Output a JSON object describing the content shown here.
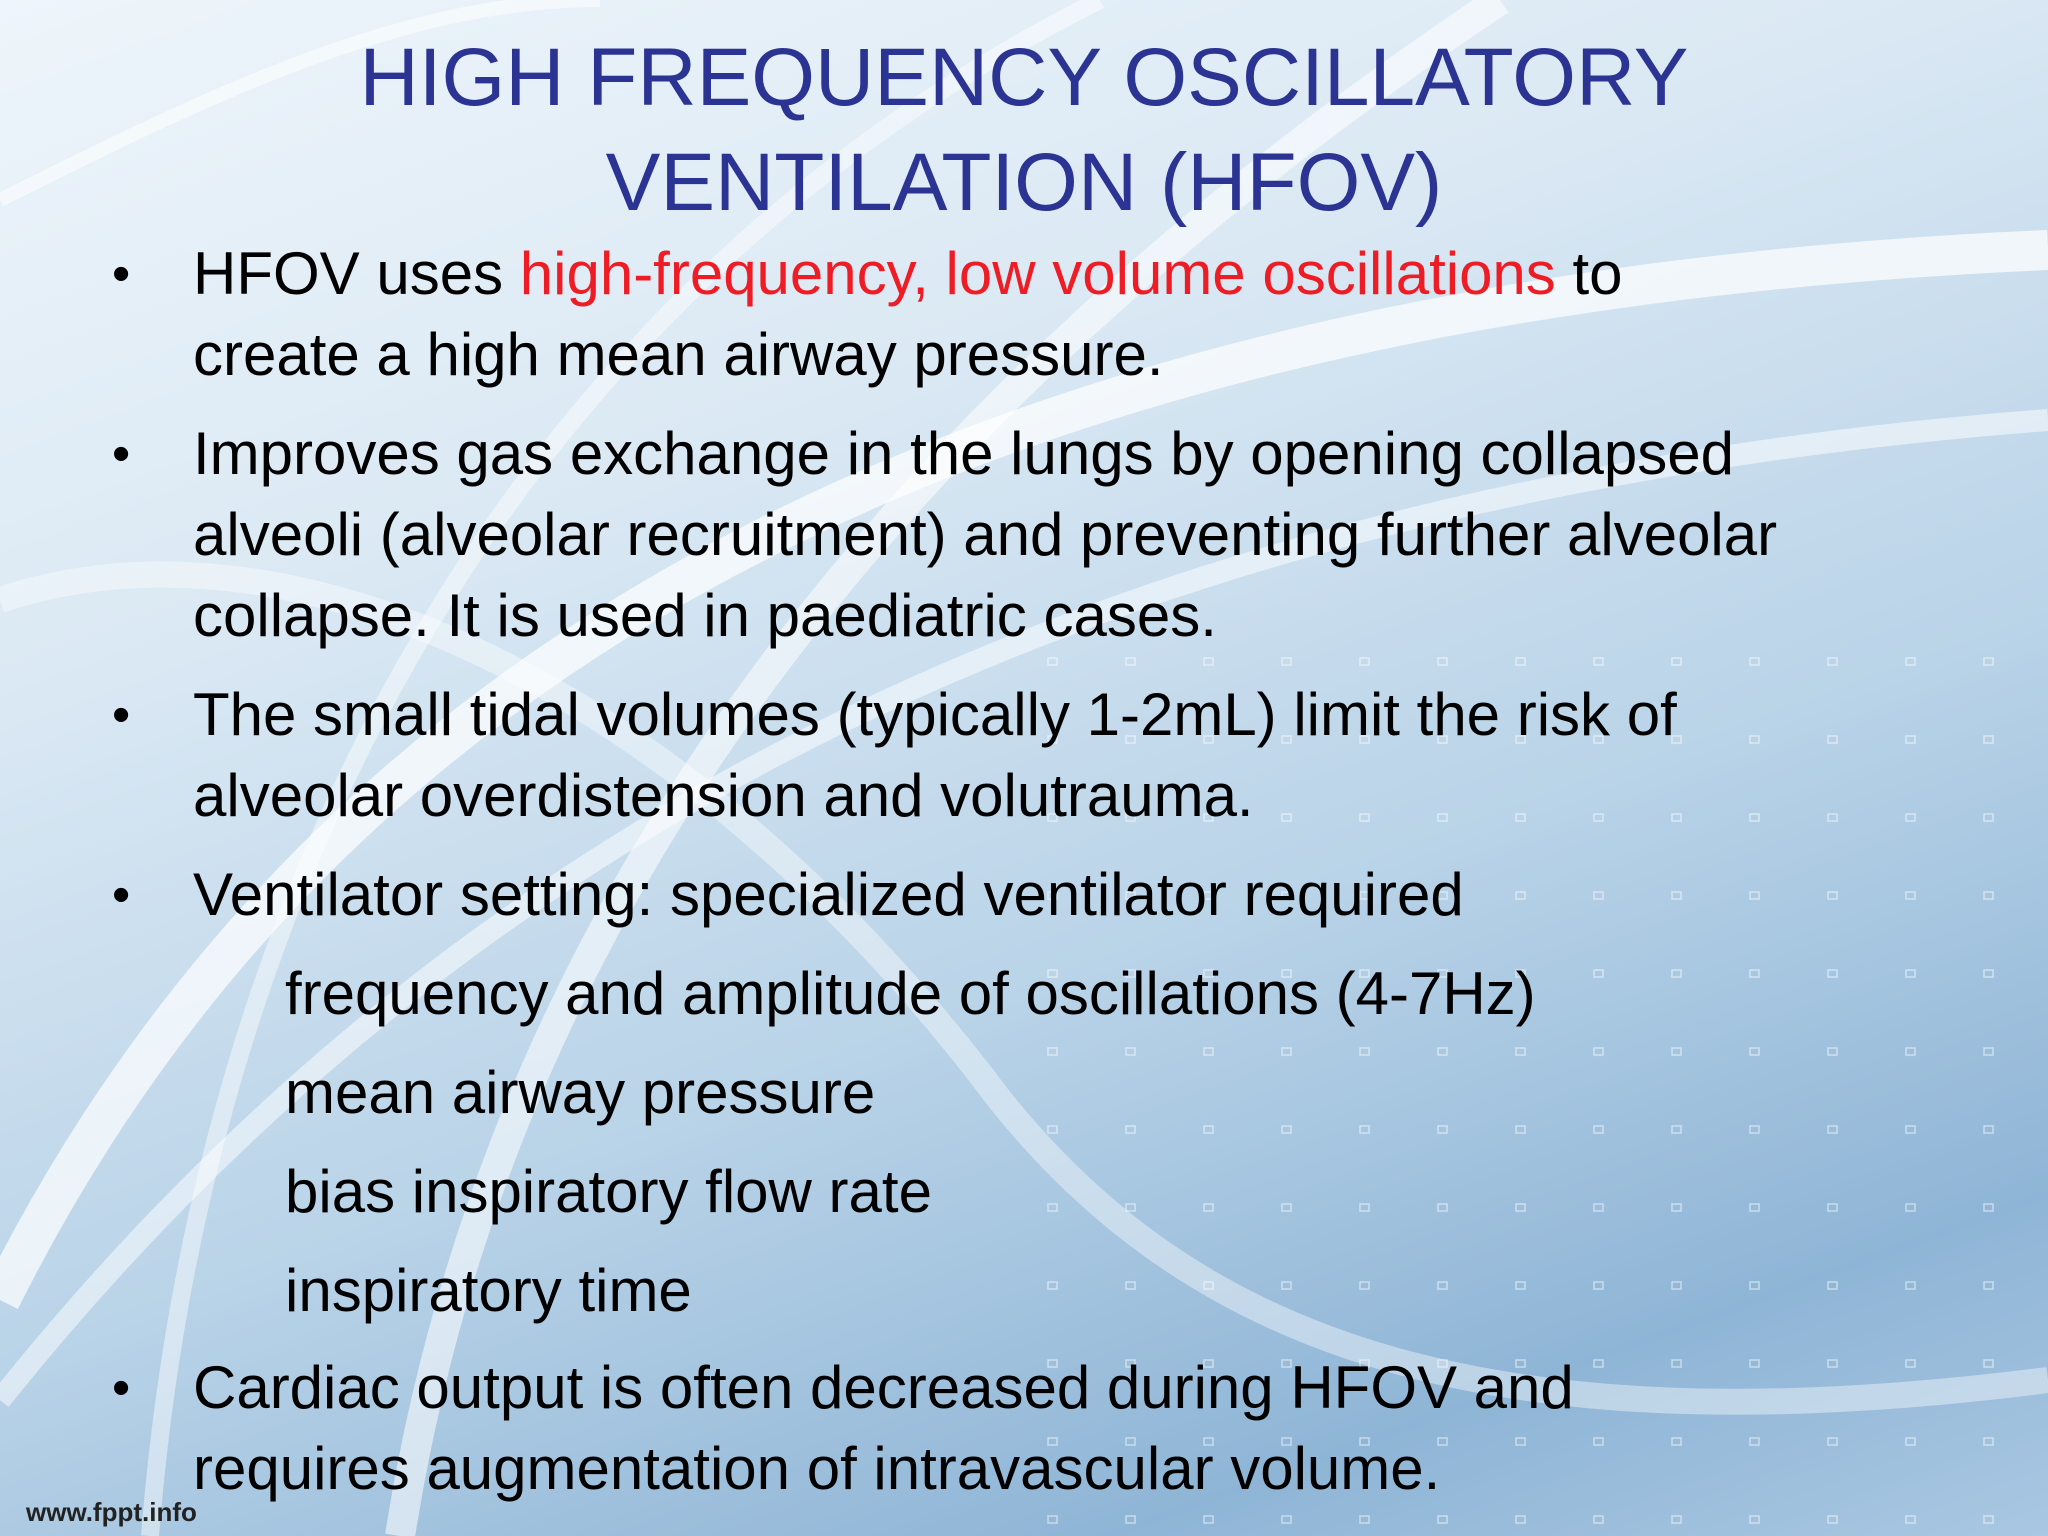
{
  "title": {
    "lines": [
      "HIGH FREQUENCY OSCILLATORY",
      "VENTILATION (HFOV)"
    ],
    "color": "#2b3393"
  },
  "bullets": [
    {
      "lines": [
        [
          {
            "text": "HFOV uses "
          },
          {
            "text": "high-frequency, low volume oscillations",
            "color": "#ee1c25"
          },
          {
            "text": " to"
          }
        ],
        [
          {
            "text": "create a high mean airway pressure."
          }
        ]
      ]
    },
    {
      "lines": [
        [
          {
            "text": "Improves gas exchange in the lungs by opening collapsed"
          }
        ],
        [
          {
            "text": "alveoli (alveolar recruitment) and preventing further alveolar"
          }
        ],
        [
          {
            "text": "collapse. It is used in paediatric cases."
          }
        ]
      ]
    },
    {
      "lines": [
        [
          {
            "text": "The small tidal volumes (typically 1-2mL) limit the risk of"
          }
        ],
        [
          {
            "text": "alveolar overdistension and volutrauma."
          }
        ]
      ]
    },
    {
      "lines": [
        [
          {
            "text": "Ventilator setting: specialized ventilator required"
          }
        ]
      ],
      "subitems": [
        "frequency and amplitude of oscillations (4-7Hz)",
        "mean airway pressure",
        "bias inspiratory flow rate",
        "inspiratory time"
      ]
    },
    {
      "lines": [
        [
          {
            "text": "Cardiac output is often decreased during HFOV and"
          }
        ],
        [
          {
            "text": "requires augmentation of intravascular volume."
          }
        ]
      ]
    }
  ],
  "bullet_symbol": "•",
  "footer": "www.fppt.info"
}
